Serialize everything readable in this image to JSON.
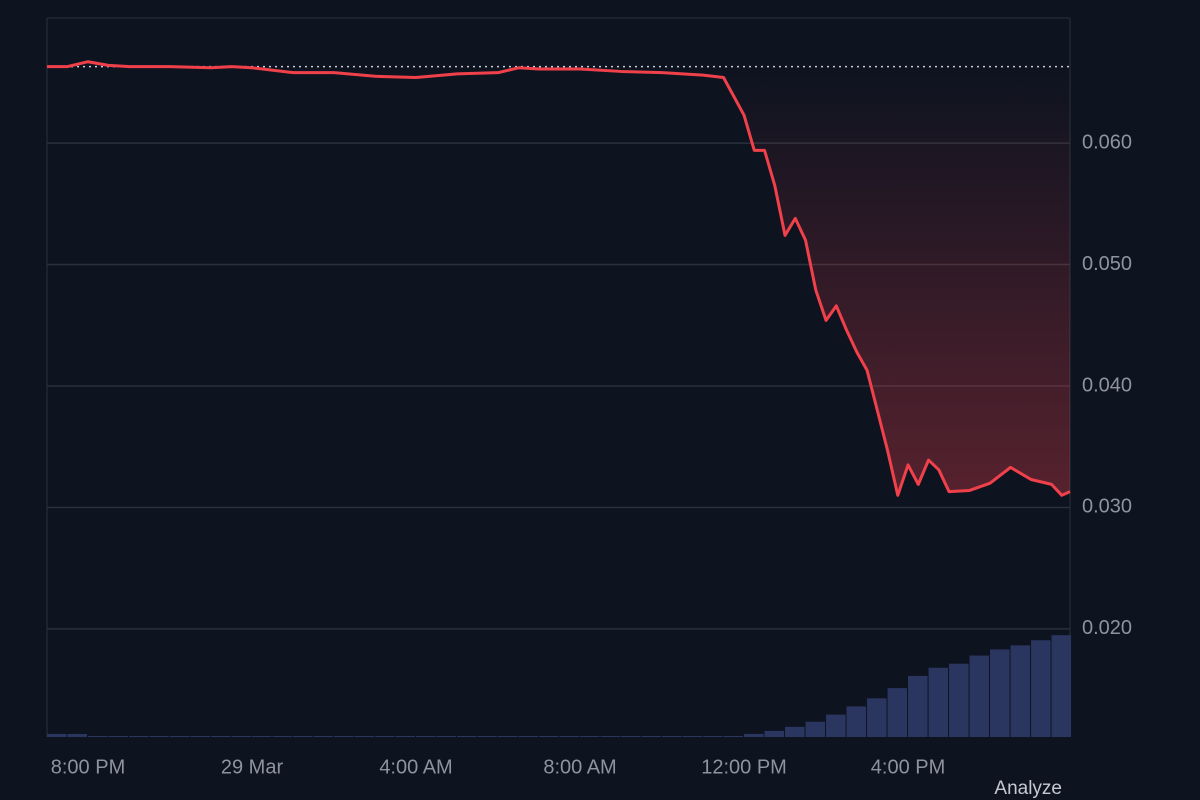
{
  "chart_data": {
    "type": "line",
    "x": [
      0,
      0.5,
      1,
      1.5,
      2,
      3,
      4,
      4.5,
      5,
      6,
      7,
      8,
      9,
      10,
      11,
      11.5,
      12,
      13,
      14,
      15,
      16,
      16.5,
      17,
      17.25,
      17.5,
      17.75,
      18,
      18.25,
      18.5,
      18.75,
      19,
      19.25,
      19.5,
      19.75,
      20,
      20.25,
      20.5,
      20.75,
      21,
      21.25,
      21.5,
      21.75,
      22,
      22.5,
      23,
      23.5,
      24,
      24.5,
      24.75,
      24.95
    ],
    "series": [
      {
        "color": "#f0414b",
        "values": [
          0.0663,
          0.0663,
          0.0667,
          0.0664,
          0.0663,
          0.0663,
          0.0662,
          0.0663,
          0.0662,
          0.0658,
          0.0658,
          0.0655,
          0.0654,
          0.0657,
          0.0658,
          0.0662,
          0.0661,
          0.0661,
          0.0659,
          0.0658,
          0.0656,
          0.0654,
          0.0623,
          0.0594,
          0.0594,
          0.0565,
          0.0524,
          0.0538,
          0.052,
          0.0479,
          0.0454,
          0.0466,
          0.0446,
          0.0428,
          0.0413,
          0.038,
          0.0347,
          0.031,
          0.0335,
          0.0319,
          0.0339,
          0.0331,
          0.0313,
          0.0314,
          0.032,
          0.0333,
          0.0323,
          0.0319,
          0.031,
          0.0313
        ]
      }
    ],
    "reference_price": 0.0663,
    "volume": {
      "color": "#2b3660",
      "x": [
        0,
        0.5,
        1,
        1.5,
        2,
        2.5,
        3,
        3.5,
        4,
        4.5,
        5,
        5.5,
        6,
        6.5,
        7,
        7.5,
        8,
        8.5,
        9,
        9.5,
        10,
        10.5,
        11,
        11.5,
        12,
        12.5,
        13,
        13.5,
        14,
        14.5,
        15,
        15.5,
        16,
        16.5,
        17,
        17.5,
        18,
        18.5,
        19,
        19.5,
        20,
        20.5,
        21,
        21.5,
        22,
        22.5,
        23,
        23.5,
        24,
        24.5
      ],
      "values": [
        3,
        3,
        1,
        1,
        1,
        1,
        1,
        1,
        1,
        1,
        1,
        1,
        1,
        1,
        1,
        1,
        1,
        1,
        1,
        1,
        1,
        1,
        1,
        1,
        1,
        1,
        1,
        1,
        1,
        1,
        1,
        1,
        1,
        1,
        3,
        6,
        10,
        15,
        22,
        30,
        38,
        48,
        60,
        68,
        72,
        80,
        86,
        90,
        95,
        100
      ],
      "ylim": [
        0,
        110
      ]
    },
    "xlim": [
      0,
      24.95
    ],
    "xticks": [
      {
        "value": 1,
        "label": "8:00 PM"
      },
      {
        "value": 5,
        "label": "29 Mar"
      },
      {
        "value": 9,
        "label": "4:00 AM"
      },
      {
        "value": 13,
        "label": "8:00 AM"
      },
      {
        "value": 17,
        "label": "12:00 PM"
      },
      {
        "value": 21,
        "label": "4:00 PM"
      }
    ],
    "ylim": [
      0.0111,
      0.0703
    ],
    "yticks": [
      {
        "value": 0.02,
        "label": "0.020"
      },
      {
        "value": 0.03,
        "label": "0.030"
      },
      {
        "value": 0.04,
        "label": "0.040"
      },
      {
        "value": 0.05,
        "label": "0.050"
      },
      {
        "value": 0.06,
        "label": "0.060"
      }
    ],
    "grid": true,
    "button": "Analyze"
  }
}
